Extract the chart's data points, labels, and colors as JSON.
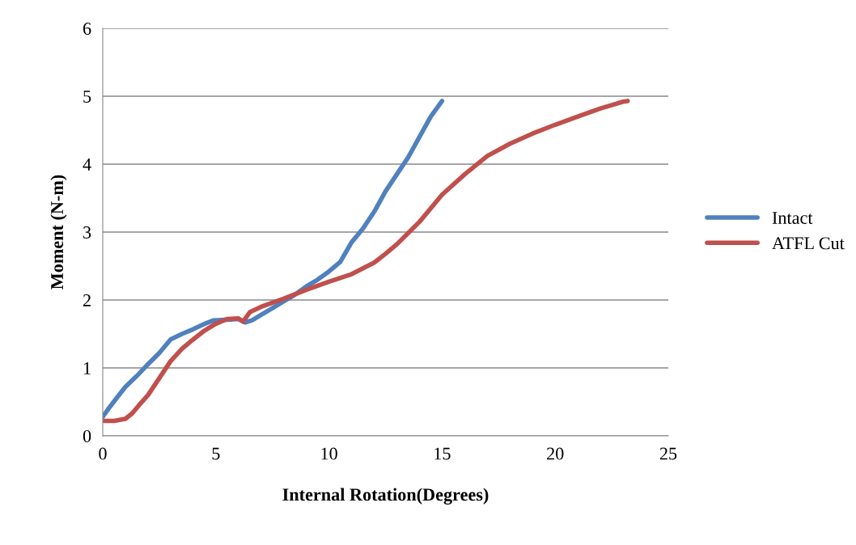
{
  "chart_data": {
    "type": "line",
    "xlabel": "Internal Rotation(Degrees)",
    "ylabel": "Moment (N-m)",
    "xlim": [
      0,
      25
    ],
    "xticks": [
      0,
      5,
      10,
      15,
      20,
      25
    ],
    "ylim": [
      0,
      6
    ],
    "yticks": [
      0,
      1,
      2,
      3,
      4,
      5,
      6
    ],
    "grid": "y",
    "legend": "right",
    "marker": "none",
    "line_style": "solid",
    "series": [
      {
        "name": "Intact",
        "color": "#4f81bd",
        "x": [
          0,
          0.3,
          0.6,
          1,
          1.5,
          1.9,
          2.5,
          3,
          3.5,
          4,
          4.5,
          4.9,
          5.5,
          6,
          6.3,
          6.6,
          7,
          7.5,
          8,
          8.5,
          9,
          9.5,
          10,
          10.5,
          11,
          11.5,
          12,
          12.5,
          13,
          13.5,
          14,
          14.5,
          15
        ],
        "values": [
          0.28,
          0.42,
          0.55,
          0.72,
          0.88,
          1.02,
          1.22,
          1.42,
          1.5,
          1.57,
          1.65,
          1.7,
          1.71,
          1.72,
          1.67,
          1.7,
          1.78,
          1.88,
          1.98,
          2.08,
          2.2,
          2.3,
          2.42,
          2.56,
          2.85,
          3.05,
          3.3,
          3.6,
          3.85,
          4.1,
          4.4,
          4.7,
          4.93
        ]
      },
      {
        "name": "ATFL Cut",
        "color": "#c0504d",
        "x": [
          0,
          0.5,
          1,
          1.3,
          1.6,
          2,
          2.5,
          3,
          3.5,
          4,
          4.5,
          5,
          5.5,
          6,
          6.2,
          6.5,
          7,
          7.5,
          8,
          9,
          10,
          11,
          12,
          12.5,
          13,
          14,
          15,
          16,
          17,
          18,
          19,
          20,
          21,
          22,
          23,
          23.2
        ],
        "values": [
          0.22,
          0.22,
          0.25,
          0.33,
          0.45,
          0.6,
          0.85,
          1.1,
          1.28,
          1.42,
          1.55,
          1.65,
          1.72,
          1.73,
          1.68,
          1.82,
          1.9,
          1.96,
          2.02,
          2.15,
          2.27,
          2.38,
          2.55,
          2.68,
          2.82,
          3.15,
          3.55,
          3.85,
          4.12,
          4.3,
          4.45,
          4.58,
          4.7,
          4.82,
          4.92,
          4.93
        ]
      }
    ]
  }
}
